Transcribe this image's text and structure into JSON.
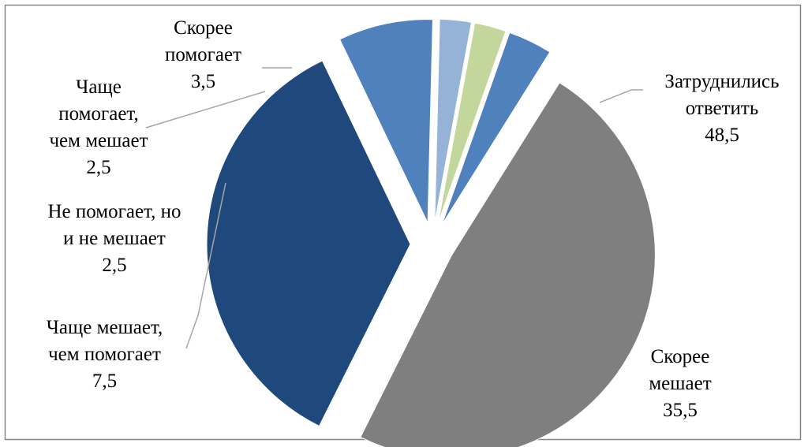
{
  "chart_data": {
    "type": "pie",
    "title": "",
    "slices": [
      {
        "label": "Затруднились ответить",
        "value": 48.5,
        "value_text": "48,5",
        "color": "#7f7f7f"
      },
      {
        "label": "Скорее мешает",
        "value": 35.5,
        "value_text": "35,5",
        "color": "#1f497d"
      },
      {
        "label": "Чаще мешает, чем помогает",
        "value": 7.5,
        "value_text": "7,5",
        "color": "#4f81bd"
      },
      {
        "label": "Не помогает, но и не мешает",
        "value": 2.5,
        "value_text": "2,5",
        "color": "#95b3d7"
      },
      {
        "label": "Чаще помогает, чем мешает",
        "value": 2.5,
        "value_text": "2,5",
        "color": "#c3d69b"
      },
      {
        "label": "Скорее помогает",
        "value": 3.5,
        "value_text": "3,5",
        "color": "#4f81bd"
      }
    ],
    "label_lines": [
      [
        "Затруднились",
        "ответить"
      ],
      [
        "Скорее",
        "мешает"
      ],
      [
        "Чаще мешает,",
        "чем помогает"
      ],
      [
        "Не помогает, но",
        "и не мешает"
      ],
      [
        "Чаще",
        "помогает,",
        "чем мешает"
      ],
      [
        "Скорее",
        "помогает"
      ]
    ],
    "legend": "none",
    "data_labels": "category and value"
  }
}
